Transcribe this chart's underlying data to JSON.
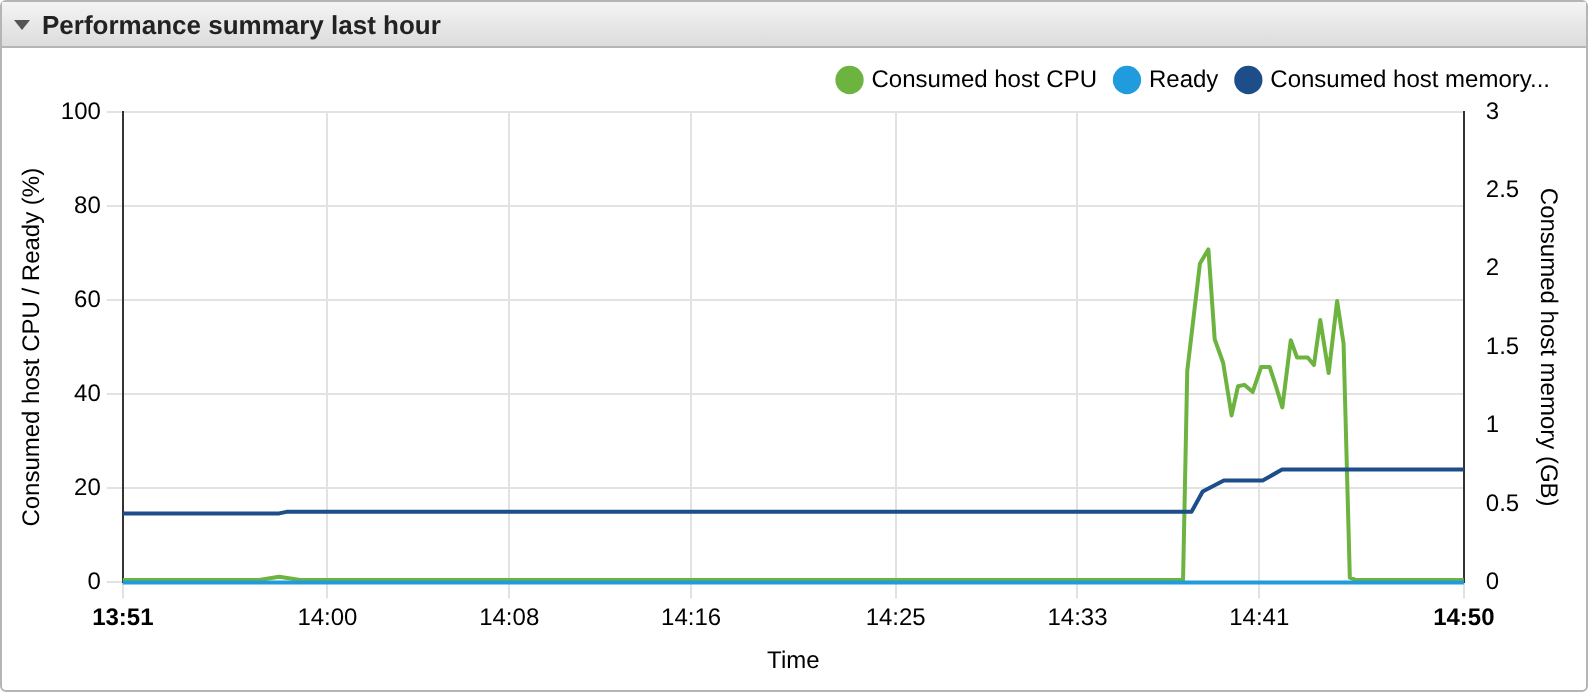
{
  "chart_data": {
    "type": "line",
    "title": "Performance summary last hour",
    "xlabel": "Time",
    "ylabel": "Consumed host CPU / Ready (%)",
    "y2label": "Consumed host memory (GB)",
    "xlim": [
      13.85,
      14.8333
    ],
    "xticks": [
      {
        "value": 13.85,
        "label": "13:51"
      },
      {
        "value": 14,
        "label": "14:00"
      },
      {
        "value": 14.1333,
        "label": "14:08"
      },
      {
        "value": 14.2667,
        "label": "14:16"
      },
      {
        "value": 14.4167,
        "label": "14:25"
      },
      {
        "value": 14.55,
        "label": "14:33"
      },
      {
        "value": 14.6833,
        "label": "14:41"
      },
      {
        "value": 14.8333,
        "label": "14:50"
      }
    ],
    "ylim": [
      0,
      100
    ],
    "yticks": [
      0,
      20,
      40,
      60,
      80,
      100
    ],
    "y2lim": [
      0,
      3
    ],
    "y2ticks": [
      0,
      0.5,
      1,
      1.5,
      2,
      2.5,
      3
    ],
    "grid": true,
    "legend": "top right",
    "marker": "none",
    "line_style": "solid",
    "series": [
      {
        "name": "Consumed host CPU",
        "color": "#6db33f",
        "x": [
          13.85,
          13.95,
          13.9646,
          13.98,
          14.6274,
          14.6305,
          14.6398,
          14.646,
          14.6506,
          14.6568,
          14.663,
          14.6677,
          14.6723,
          14.6785,
          14.6847,
          14.6909,
          14.6955,
          14.7002,
          14.7064,
          14.711,
          14.7188,
          14.7234,
          14.728,
          14.7342,
          14.7404,
          14.7451,
          14.7497,
          14.7544,
          14.8333
        ],
        "values": [
          0.5,
          0.5,
          1.2,
          0.5,
          0.5,
          45,
          67.8,
          70.8,
          51.7,
          46.7,
          35.5,
          41.7,
          42,
          40.5,
          45.8,
          45.8,
          41.7,
          37.2,
          51.5,
          47.8,
          47.8,
          46.2,
          55.8,
          44.5,
          59.8,
          50.8,
          1,
          0.5,
          0.5
        ]
      },
      {
        "name": "Ready",
        "color": "#1f9bde",
        "x": [
          13.85,
          14.8333
        ],
        "values": [
          0,
          0
        ]
      },
      {
        "name": "Consumed host memory...",
        "color": "#1d4e89",
        "axis": "y2",
        "x": [
          13.85,
          13.9646,
          13.97,
          14.6336,
          14.6418,
          14.6573,
          14.6858,
          14.7,
          14.8333
        ],
        "values": [
          0.44,
          0.44,
          0.45,
          0.45,
          0.58,
          0.65,
          0.65,
          0.72,
          0.72
        ]
      }
    ]
  }
}
